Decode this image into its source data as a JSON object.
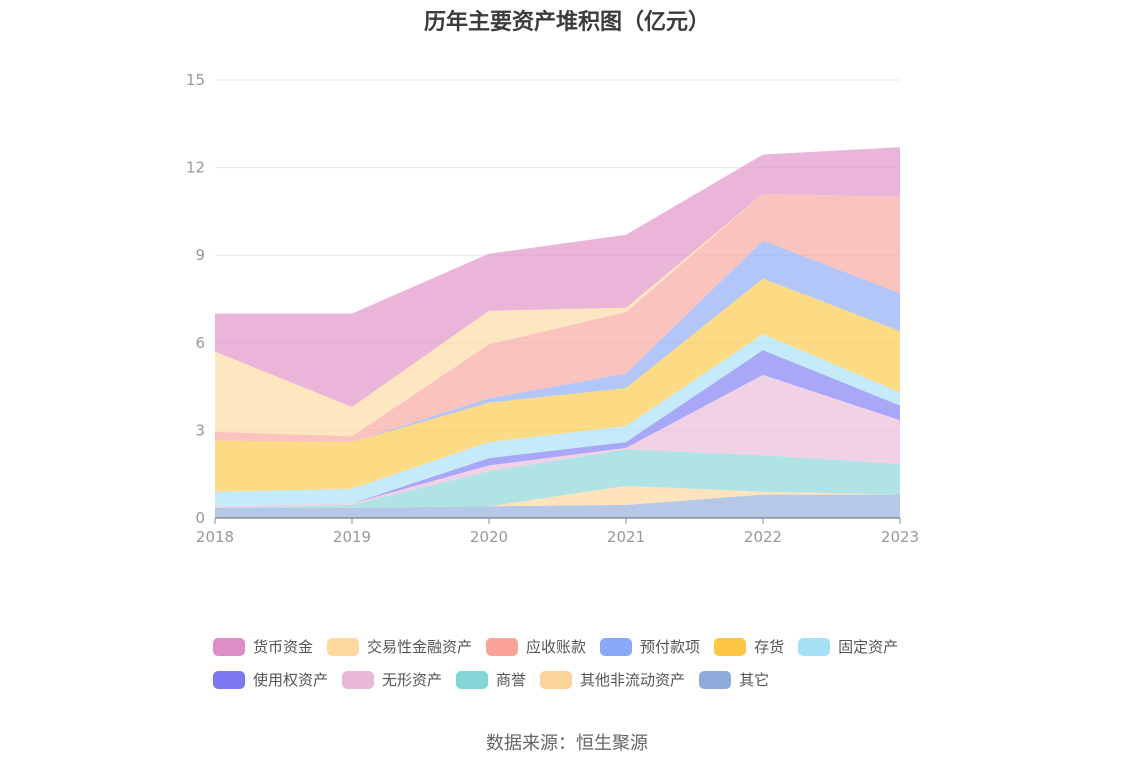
{
  "chart_data": {
    "type": "area",
    "stacked": true,
    "title": "历年主要资产堆积图（亿元）",
    "x": [
      "2018",
      "2019",
      "2020",
      "2021",
      "2022",
      "2023"
    ],
    "ylim": [
      0,
      15
    ],
    "yticks": [
      0,
      3,
      6,
      9,
      12,
      15
    ],
    "grid": true,
    "legend_position": "bottom",
    "series": [
      {
        "name": "其它",
        "color": "#8faadc",
        "values": [
          0.35,
          0.35,
          0.4,
          0.45,
          0.8,
          0.8
        ]
      },
      {
        "name": "其他非流动资产",
        "color": "#fdd49a",
        "values": [
          0.0,
          0.0,
          0.0,
          0.65,
          0.1,
          0.0
        ]
      },
      {
        "name": "商誉",
        "color": "#85d6d6",
        "values": [
          0.0,
          0.1,
          1.2,
          1.25,
          1.25,
          1.05
        ]
      },
      {
        "name": "无形资产",
        "color": "#e9b8d8",
        "values": [
          0.05,
          0.05,
          0.2,
          0.05,
          2.75,
          1.5
        ]
      },
      {
        "name": "使用权资产",
        "color": "#7b78f2",
        "values": [
          0.0,
          0.0,
          0.25,
          0.2,
          0.85,
          0.5
        ]
      },
      {
        "name": "固定资产",
        "color": "#a6e0f7",
        "values": [
          0.5,
          0.5,
          0.55,
          0.55,
          0.55,
          0.45
        ]
      },
      {
        "name": "存货",
        "color": "#fcc744",
        "values": [
          1.75,
          1.6,
          1.35,
          1.3,
          1.9,
          2.1
        ]
      },
      {
        "name": "预付款项",
        "color": "#8aa8f8",
        "values": [
          0.0,
          0.0,
          0.15,
          0.5,
          1.3,
          1.3
        ]
      },
      {
        "name": "应收账款",
        "color": "#f9a39a",
        "values": [
          0.3,
          0.2,
          1.85,
          2.1,
          1.6,
          3.3
        ]
      },
      {
        "name": "交易性金融资产",
        "color": "#fdd9a0",
        "values": [
          2.75,
          1.0,
          1.15,
          0.15,
          0.0,
          0.0
        ]
      },
      {
        "name": "货币资金",
        "color": "#df8ec5",
        "values": [
          1.3,
          3.2,
          1.95,
          2.5,
          1.35,
          1.7
        ]
      }
    ],
    "legend_order": [
      "货币资金",
      "交易性金融资产",
      "应收账款",
      "预付款项",
      "存货",
      "固定资产",
      "使用权资产",
      "无形资产",
      "商誉",
      "其他非流动资产",
      "其它"
    ]
  },
  "source": "数据来源：恒生聚源"
}
